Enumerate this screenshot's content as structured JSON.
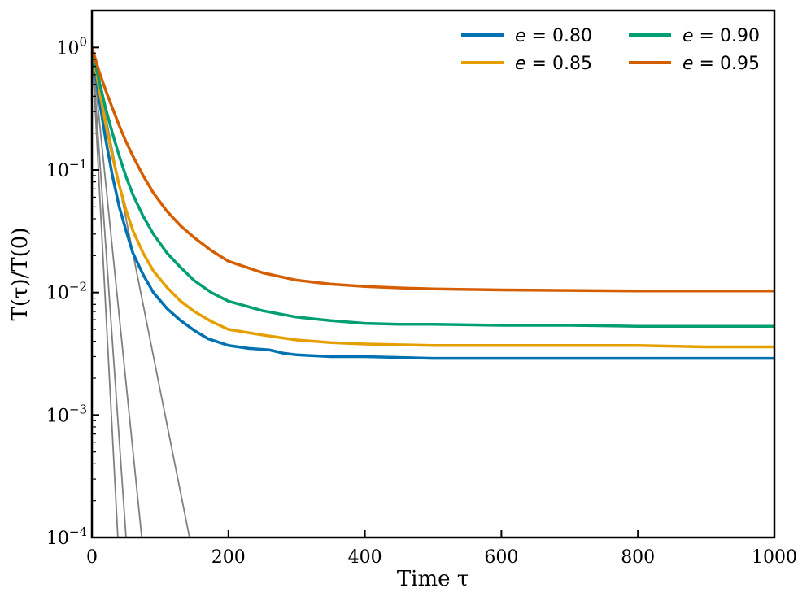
{
  "chart_data": {
    "type": "line",
    "yscale": "log",
    "xlabel": "Time τ",
    "ylabel": "T(τ)/T(0)",
    "xlim": [
      0,
      1000
    ],
    "ylim": [
      0.0001,
      2
    ],
    "xticks": [
      0,
      200,
      400,
      600,
      800,
      1000
    ],
    "xtick_labels": [
      "0",
      "200",
      "400",
      "600",
      "800",
      "1000"
    ],
    "yticks": [
      {
        "value": 1,
        "base": "10",
        "exp": "0"
      },
      {
        "value": 0.1,
        "base": "10",
        "exp": "−1"
      },
      {
        "value": 0.01,
        "base": "10",
        "exp": "−2"
      },
      {
        "value": 0.001,
        "base": "10",
        "exp": "−3"
      },
      {
        "value": 0.0001,
        "base": "10",
        "exp": "−4"
      }
    ],
    "legend_position": "top-right",
    "series": [
      {
        "name": "e = 0.80",
        "legend_var": "e",
        "legend_value": "= 0.80",
        "color": "#0072b2",
        "x": [
          0,
          10,
          20,
          30,
          40,
          50,
          60,
          75,
          90,
          110,
          130,
          150,
          170,
          200,
          230,
          260,
          280,
          300,
          350,
          400,
          500,
          600,
          700,
          800,
          900,
          1000
        ],
        "y": [
          1.0,
          0.4,
          0.18,
          0.09,
          0.05,
          0.032,
          0.021,
          0.014,
          0.01,
          0.0074,
          0.0059,
          0.0049,
          0.0042,
          0.0037,
          0.0035,
          0.0034,
          0.0032,
          0.0031,
          0.003,
          0.003,
          0.0029,
          0.0029,
          0.0029,
          0.0029,
          0.0029,
          0.0029
        ]
      },
      {
        "name": "e = 0.85",
        "legend_var": "e",
        "legend_value": "= 0.85",
        "color": "#e69f00",
        "x": [
          0,
          10,
          20,
          30,
          40,
          50,
          60,
          75,
          90,
          110,
          130,
          150,
          175,
          200,
          250,
          300,
          350,
          400,
          500,
          600,
          700,
          800,
          900,
          1000
        ],
        "y": [
          1.0,
          0.48,
          0.24,
          0.13,
          0.075,
          0.047,
          0.032,
          0.021,
          0.015,
          0.011,
          0.0085,
          0.007,
          0.0058,
          0.005,
          0.0045,
          0.0041,
          0.0039,
          0.0038,
          0.0037,
          0.0037,
          0.0037,
          0.0037,
          0.0036,
          0.0036
        ]
      },
      {
        "name": "e = 0.90",
        "legend_var": "e",
        "legend_value": "= 0.90",
        "color": "#009e73",
        "x": [
          0,
          10,
          20,
          30,
          40,
          50,
          60,
          75,
          90,
          110,
          130,
          150,
          175,
          200,
          250,
          300,
          350,
          400,
          450,
          500,
          600,
          700,
          800,
          900,
          1000
        ],
        "y": [
          1.0,
          0.55,
          0.32,
          0.2,
          0.13,
          0.088,
          0.063,
          0.042,
          0.03,
          0.021,
          0.016,
          0.0125,
          0.01,
          0.0085,
          0.0071,
          0.0063,
          0.0059,
          0.0056,
          0.0055,
          0.0055,
          0.0054,
          0.0054,
          0.0053,
          0.0053,
          0.0053
        ]
      },
      {
        "name": "e = 0.95",
        "legend_var": "e",
        "legend_value": "= 0.95",
        "color": "#d55e00",
        "x": [
          0,
          10,
          20,
          30,
          40,
          50,
          60,
          75,
          90,
          110,
          130,
          150,
          175,
          200,
          250,
          300,
          350,
          400,
          450,
          500,
          600,
          700,
          800,
          900,
          1000
        ],
        "y": [
          1.0,
          0.65,
          0.45,
          0.32,
          0.23,
          0.17,
          0.13,
          0.09,
          0.065,
          0.046,
          0.035,
          0.028,
          0.022,
          0.018,
          0.0145,
          0.0126,
          0.0117,
          0.0112,
          0.0109,
          0.0107,
          0.0105,
          0.0104,
          0.0103,
          0.0103,
          0.0103
        ]
      }
    ],
    "reference_lines": [
      {
        "name": "decay-ref-1",
        "color": "#808080",
        "x": [
          0,
          38
        ],
        "y": [
          1.0,
          0.0001
        ]
      },
      {
        "name": "decay-ref-2",
        "color": "#808080",
        "x": [
          0,
          50
        ],
        "y": [
          1.0,
          0.0001
        ]
      },
      {
        "name": "decay-ref-3",
        "color": "#808080",
        "x": [
          0,
          73
        ],
        "y": [
          1.0,
          0.0001
        ]
      },
      {
        "name": "decay-ref-4",
        "color": "#808080",
        "x": [
          0,
          143
        ],
        "y": [
          1.0,
          0.0001
        ]
      }
    ]
  }
}
